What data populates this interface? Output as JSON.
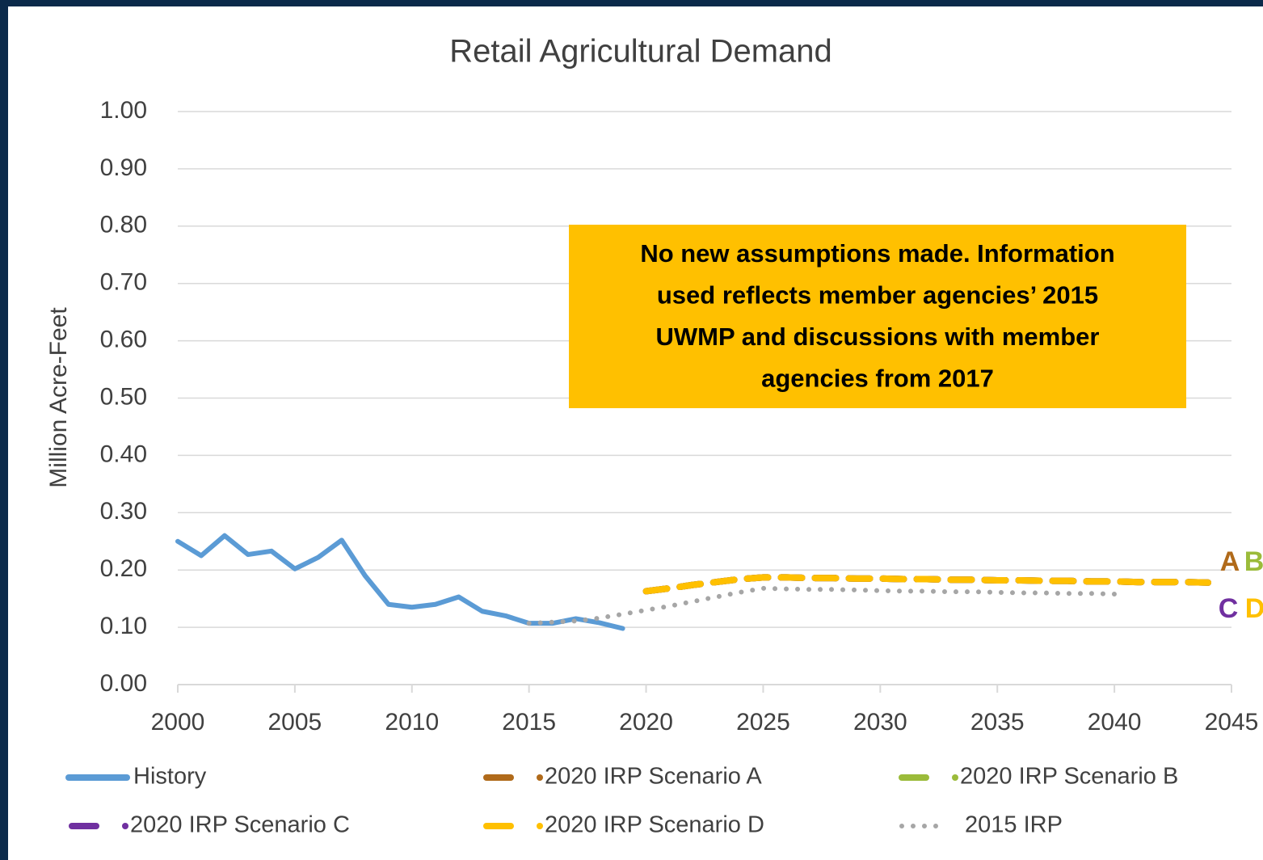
{
  "chart_data": {
    "type": "line",
    "title": "Retail Agricultural Demand",
    "y_label": "Million Acre-Feet",
    "xlim": [
      2000,
      2045
    ],
    "xticks": [
      2000,
      2005,
      2010,
      2015,
      2020,
      2025,
      2030,
      2035,
      2040,
      2045
    ],
    "ylim": [
      0,
      1
    ],
    "yticks": [
      {
        "value": 0,
        "label": "0.00"
      },
      {
        "value": 0.1,
        "label": "0.10"
      },
      {
        "value": 0.2,
        "label": "0.20"
      },
      {
        "value": 0.3,
        "label": "0.30"
      },
      {
        "value": 0.4,
        "label": "0.40"
      },
      {
        "value": 0.5,
        "label": "0.50"
      },
      {
        "value": 0.6,
        "label": "0.60"
      },
      {
        "value": 0.7,
        "label": "0.70"
      },
      {
        "value": 0.8,
        "label": "0.80"
      },
      {
        "value": 0.9,
        "label": "0.90"
      },
      {
        "value": 1,
        "label": "1.00"
      }
    ],
    "grid": true,
    "legend": "bottom",
    "series": [
      {
        "name": "History",
        "color": "#5b9bd5",
        "style": "solid",
        "x": [
          2000,
          2001,
          2002,
          2003,
          2004,
          2005,
          2006,
          2007,
          2008,
          2009,
          2010,
          2011,
          2012,
          2013,
          2014,
          2015,
          2016,
          2017,
          2018,
          2019
        ],
        "values": [
          0.25,
          0.225,
          0.26,
          0.227,
          0.233,
          0.202,
          0.222,
          0.252,
          0.19,
          0.14,
          0.135,
          0.14,
          0.153,
          0.128,
          0.12,
          0.107,
          0.107,
          0.115,
          0.108,
          0.098
        ]
      },
      {
        "name": "2020 IRP Scenario A",
        "color": "#b06a1a",
        "style": "dashed",
        "x": [
          2020,
          2021,
          2022,
          2023,
          2024,
          2025,
          2026,
          2027,
          2028,
          2029,
          2030,
          2031,
          2032,
          2033,
          2034,
          2035,
          2036,
          2037,
          2038,
          2039,
          2040,
          2041,
          2042,
          2043,
          2044
        ],
        "values": [
          0.163,
          0.168,
          0.174,
          0.179,
          0.184,
          0.187,
          0.187,
          0.186,
          0.186,
          0.185,
          0.185,
          0.184,
          0.184,
          0.183,
          0.183,
          0.182,
          0.182,
          0.181,
          0.181,
          0.18,
          0.18,
          0.179,
          0.179,
          0.179,
          0.178
        ]
      },
      {
        "name": "2020 IRP Scenario B",
        "color": "#9bbb3a",
        "style": "dashed",
        "x": [
          2020,
          2021,
          2022,
          2023,
          2024,
          2025,
          2026,
          2027,
          2028,
          2029,
          2030,
          2031,
          2032,
          2033,
          2034,
          2035,
          2036,
          2037,
          2038,
          2039,
          2040,
          2041,
          2042,
          2043,
          2044
        ],
        "values": [
          0.163,
          0.168,
          0.174,
          0.179,
          0.184,
          0.187,
          0.187,
          0.186,
          0.186,
          0.185,
          0.185,
          0.184,
          0.184,
          0.183,
          0.183,
          0.182,
          0.182,
          0.181,
          0.181,
          0.18,
          0.18,
          0.179,
          0.179,
          0.179,
          0.178
        ]
      },
      {
        "name": "2020 IRP Scenario C",
        "color": "#7030a0",
        "style": "dashed",
        "x": [
          2020,
          2021,
          2022,
          2023,
          2024,
          2025,
          2026,
          2027,
          2028,
          2029,
          2030,
          2031,
          2032,
          2033,
          2034,
          2035,
          2036,
          2037,
          2038,
          2039,
          2040,
          2041,
          2042,
          2043,
          2044
        ],
        "values": [
          0.163,
          0.168,
          0.174,
          0.179,
          0.184,
          0.187,
          0.187,
          0.186,
          0.186,
          0.185,
          0.185,
          0.184,
          0.184,
          0.183,
          0.183,
          0.182,
          0.182,
          0.181,
          0.181,
          0.18,
          0.18,
          0.179,
          0.179,
          0.179,
          0.178
        ]
      },
      {
        "name": "2020 IRP Scenario D",
        "color": "#ffc000",
        "style": "dashed",
        "x": [
          2020,
          2021,
          2022,
          2023,
          2024,
          2025,
          2026,
          2027,
          2028,
          2029,
          2030,
          2031,
          2032,
          2033,
          2034,
          2035,
          2036,
          2037,
          2038,
          2039,
          2040,
          2041,
          2042,
          2043,
          2044
        ],
        "values": [
          0.163,
          0.168,
          0.174,
          0.179,
          0.184,
          0.187,
          0.187,
          0.186,
          0.186,
          0.185,
          0.185,
          0.184,
          0.184,
          0.183,
          0.183,
          0.182,
          0.182,
          0.181,
          0.181,
          0.18,
          0.18,
          0.179,
          0.179,
          0.179,
          0.178
        ]
      },
      {
        "name": "2015 IRP",
        "color": "#a6a6a6",
        "style": "dotted",
        "x": [
          2015,
          2016,
          2017,
          2018,
          2019,
          2020,
          2021,
          2022,
          2023,
          2024,
          2025,
          2026,
          2027,
          2028,
          2029,
          2030,
          2031,
          2032,
          2033,
          2034,
          2035,
          2036,
          2037,
          2038,
          2039,
          2040
        ],
        "values": [
          0.107,
          0.109,
          0.111,
          0.116,
          0.123,
          0.13,
          0.137,
          0.145,
          0.153,
          0.161,
          0.168,
          0.167,
          0.166,
          0.166,
          0.165,
          0.164,
          0.163,
          0.163,
          0.162,
          0.162,
          0.161,
          0.16,
          0.16,
          0.159,
          0.159,
          0.158
        ]
      }
    ],
    "note_box": {
      "color": "#ffc000",
      "lines": [
        "No new assumptions made.  Information",
        "used reflects member agencies’ 2015",
        "UWMP and discussions with member",
        "agencies from 2017"
      ]
    },
    "scenario_letters": [
      {
        "text": "A",
        "color": "#b06a1a"
      },
      {
        "text": "B",
        "color": "#9bbb3a"
      },
      {
        "text": "C",
        "color": "#7030a0"
      },
      {
        "text": "D",
        "color": "#ffc000"
      }
    ]
  }
}
